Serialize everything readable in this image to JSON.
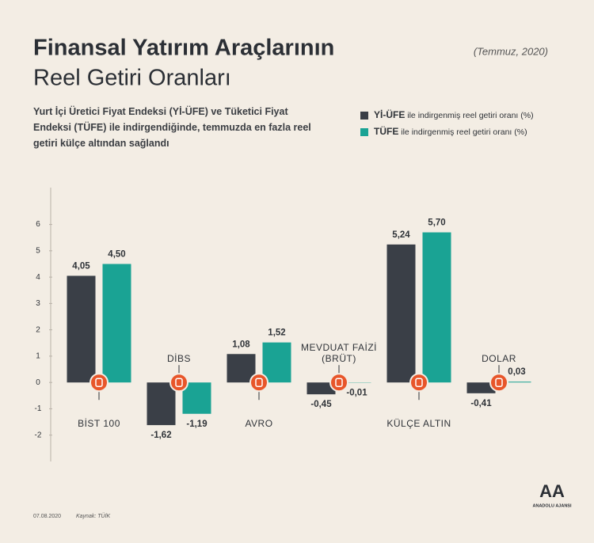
{
  "chart_data": {
    "type": "bar",
    "title": "Finansal Yatırım Araçlarının",
    "title_line2": "Reel Getiri Oranları",
    "date_note": "(Temmuz, 2020)",
    "subtitle": "Yurt İçi Üretici Fiyat Endeksi (Yİ-ÜFE) ve Tüketici Fiyat Endeksi (TÜFE) ile indirgendiğinde, temmuzda en fazla reel getiri külçe altından sağlandı",
    "legend_suffix": "ile indirgenmiş reel getiri oranı (%)",
    "categories": [
      "BİST 100",
      "DİBS",
      "AVRO",
      "MEVDUAT FAİZİ (BRÜT)",
      "KÜLÇE ALTIN",
      "DOLAR"
    ],
    "series": [
      {
        "name": "Yİ-ÜFE",
        "color": "#3a3f47",
        "values": [
          4.05,
          -1.62,
          1.08,
          -0.45,
          5.24,
          -0.41
        ],
        "value_labels": [
          "4,05",
          "-1,62",
          "1,08",
          "-0,45",
          "5,24",
          "-0,41"
        ]
      },
      {
        "name": "TÜFE",
        "color": "#1aa394",
        "values": [
          4.5,
          -1.19,
          1.52,
          -0.01,
          5.7,
          0.03
        ],
        "value_labels": [
          "4,50",
          "-1,19",
          "1,52",
          "-0,01",
          "5,70",
          "0,03"
        ]
      }
    ],
    "ylim": [
      -3,
      7.4
    ],
    "yticks": [
      -2,
      -1,
      0,
      1,
      2,
      3,
      4,
      5,
      6
    ],
    "footer_date": "07.08.2020",
    "source": "Kaynak: TÜİK",
    "logo": "AA",
    "logo_text": "ANADOLU AJANSI"
  }
}
